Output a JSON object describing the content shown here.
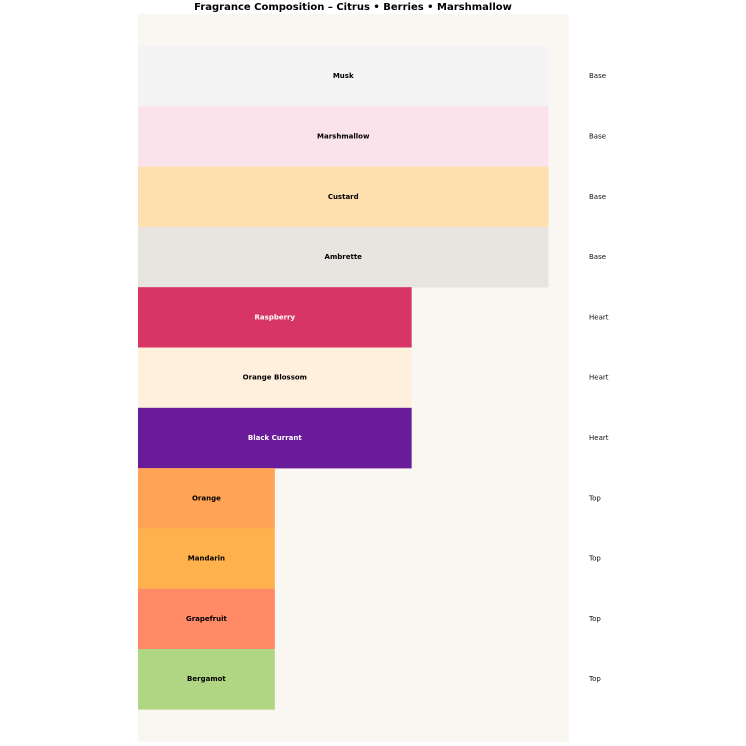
{
  "chart_data": {
    "type": "bar",
    "orientation": "horizontal",
    "title": "Fragrance Composition – Citrus • Berries • Marshmallow",
    "categories": [
      "Musk",
      "Marshmallow",
      "Custard",
      "Ambrette",
      "Raspberry",
      "Orange Blossom",
      "Black Currant",
      "Orange",
      "Mandarin",
      "Grapefruit",
      "Bergamot"
    ],
    "values": [
      3,
      3,
      3,
      3,
      2,
      2,
      2,
      1,
      1,
      1,
      1
    ],
    "groups": [
      "Base",
      "Base",
      "Base",
      "Base",
      "Heart",
      "Heart",
      "Heart",
      "Top",
      "Top",
      "Top",
      "Top"
    ],
    "colors": [
      "#f4f4f4",
      "#fae3ea",
      "#ffdfb0",
      "#e8e4df",
      "#d63565",
      "#fff0de",
      "#6a1b9a",
      "#ffa354",
      "#ffb14e",
      "#ff8a65",
      "#b0d683"
    ],
    "xlim": [
      0,
      3.15
    ],
    "background": "#faf6f1"
  }
}
